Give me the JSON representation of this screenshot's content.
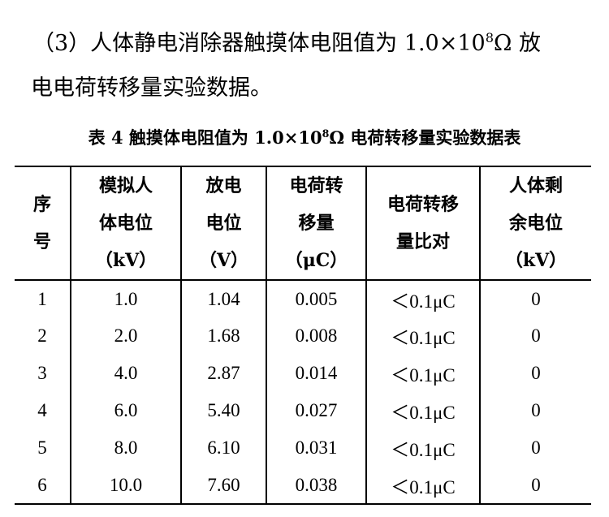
{
  "paragraph": {
    "line1_prefix": "（3）人体静电消除器触摸体电阻值为 1.0×10",
    "line1_exp": "8",
    "line1_suffix": "Ω 放",
    "line2": "电电荷转移量实验数据。"
  },
  "caption": {
    "prefix": "表 4  触摸体电阻值为 1.0×10",
    "exp": "8",
    "suffix": "Ω 电荷转移量实验数据表"
  },
  "table": {
    "headers": [
      [
        "序",
        "号"
      ],
      [
        "模拟人",
        "体电位",
        "（kV）"
      ],
      [
        "放电",
        "电位",
        "（V）"
      ],
      [
        "电荷转",
        "移量",
        "（μC）"
      ],
      [
        "电荷转移",
        "量比对"
      ],
      [
        "人体剩",
        "余电位",
        "（kV）"
      ]
    ],
    "rows": [
      [
        "1",
        "1.0",
        "1.04",
        "0.005",
        "＜0.1μC",
        "0"
      ],
      [
        "2",
        "2.0",
        "1.68",
        "0.008",
        "＜0.1μC",
        "0"
      ],
      [
        "3",
        "4.0",
        "2.87",
        "0.014",
        "＜0.1μC",
        "0"
      ],
      [
        "4",
        "6.0",
        "5.40",
        "0.027",
        "＜0.1μC",
        "0"
      ],
      [
        "5",
        "8.0",
        "6.10",
        "0.031",
        "＜0.1μC",
        "0"
      ],
      [
        "6",
        "10.0",
        "7.60",
        "0.038",
        "＜0.1μC",
        "0"
      ]
    ]
  }
}
